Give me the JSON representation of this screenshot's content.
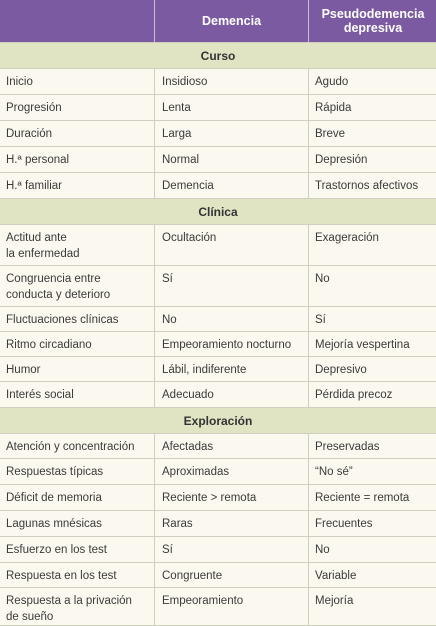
{
  "header": {
    "col1": "Demencia",
    "col2": "Pseudodemencia depresiva"
  },
  "sections": [
    {
      "title": "Curso",
      "rows": [
        [
          "Inicio",
          "Insidioso",
          "Agudo"
        ],
        [
          "Progresión",
          "Lenta",
          "Rápida"
        ],
        [
          "Duración",
          "Larga",
          "Breve"
        ],
        [
          "H.ª personal",
          "Normal",
          "Depresión"
        ],
        [
          "H.ª familiar",
          "Demencia",
          "Trastornos afectivos"
        ]
      ]
    },
    {
      "title": "Clínica",
      "rows": [
        [
          "Actitud ante\nla enfermedad",
          "Ocultación",
          "Exageración"
        ],
        [
          "Congruencia entre\nconducta y deterioro",
          "Sí",
          "No"
        ],
        [
          "Fluctuaciones clínicas",
          "No",
          "Sí"
        ],
        [
          "Ritmo circadiano",
          "Empeoramiento nocturno",
          "Mejoría vespertina"
        ],
        [
          "Humor",
          "Lábil, indiferente",
          "Depresivo"
        ],
        [
          "Interés social",
          "Adecuado",
          "Pérdida precoz"
        ]
      ]
    },
    {
      "title": "Exploración",
      "rows": [
        [
          "Atención y concentración",
          "Afectadas",
          "Preservadas"
        ],
        [
          "Respuestas típicas",
          "Aproximadas",
          "“No sé”"
        ],
        [
          "Déficit de memoria",
          "Reciente > remota",
          "Reciente = remota"
        ],
        [
          "Lagunas mnésicas",
          "Raras",
          "Frecuentes"
        ],
        [
          "Esfuerzo en los test",
          "Sí",
          "No"
        ],
        [
          "Respuesta en los test",
          "Congruente",
          "Variable"
        ],
        [
          "Respuesta a la privación\nde sueño",
          "Empeoramiento",
          "Mejoría"
        ]
      ]
    }
  ]
}
